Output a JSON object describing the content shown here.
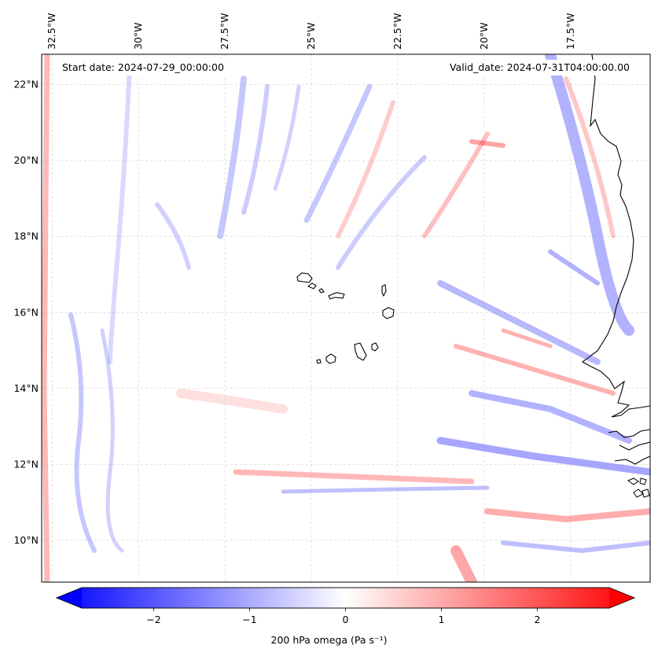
{
  "header": {
    "start_date": "Start date: 2024-07-29_00:00:00",
    "valid_date": "Valid_date: 2024-07-31T04:00:00.00"
  },
  "map": {
    "extent_lon": [
      -32.8,
      -15.2
    ],
    "extent_lat": [
      8.9,
      22.8
    ],
    "lon_ticks": [
      {
        "value": -32.5,
        "label": "32.5°W"
      },
      {
        "value": -30,
        "label": "30°W"
      },
      {
        "value": -27.5,
        "label": "27.5°W"
      },
      {
        "value": -25,
        "label": "25°W"
      },
      {
        "value": -22.5,
        "label": "22.5°W"
      },
      {
        "value": -20,
        "label": "20°W"
      },
      {
        "value": -17.5,
        "label": "17.5°W"
      }
    ],
    "lat_ticks": [
      {
        "value": 22,
        "label": "22°N"
      },
      {
        "value": 20,
        "label": "20°N"
      },
      {
        "value": 18,
        "label": "18°N"
      },
      {
        "value": 16,
        "label": "16°N"
      },
      {
        "value": 14,
        "label": "14°N"
      },
      {
        "value": 12,
        "label": "12°N"
      },
      {
        "value": 10,
        "label": "10°N"
      }
    ],
    "gridlines": true,
    "field": "200 hPa omega",
    "colormap": {
      "low": "#0000ff",
      "mid": "#ffffff",
      "high": "#ff0000"
    },
    "coastline_color": "#000000"
  },
  "colorbar": {
    "title": "200 hPa omega (Pa s⁻¹)",
    "range": [
      -2.75,
      2.75
    ],
    "extend": "both",
    "ticks": [
      {
        "value": -2,
        "label": "−2"
      },
      {
        "value": -1,
        "label": "−1"
      },
      {
        "value": 0,
        "label": "0"
      },
      {
        "value": 1,
        "label": "1"
      },
      {
        "value": 2,
        "label": "2"
      }
    ]
  }
}
